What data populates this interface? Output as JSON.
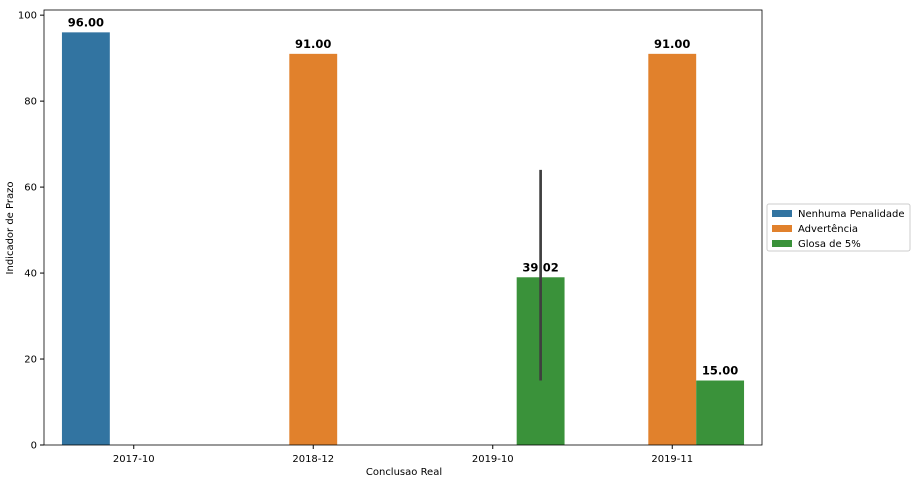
{
  "chart_data": {
    "type": "bar",
    "x_label": "Conclusao Real",
    "y_label": "Indicador de Prazo",
    "categories": [
      "2017-10",
      "2018-12",
      "2019-10",
      "2019-11"
    ],
    "series": [
      {
        "name": "Nenhuma Penalidade",
        "color": "#3274a1",
        "values": [
          96,
          null,
          null,
          null
        ],
        "value_labels": [
          "96.00",
          null,
          null,
          null
        ]
      },
      {
        "name": "Advertência",
        "color": "#e1812c",
        "values": [
          null,
          91,
          null,
          91
        ],
        "value_labels": [
          null,
          "91.00",
          null,
          "91.00"
        ]
      },
      {
        "name": "Glosa de 5%",
        "color": "#3a923a",
        "values": [
          null,
          null,
          39.02,
          15
        ],
        "value_labels": [
          null,
          null,
          "39.02",
          "15.00"
        ],
        "ci_low": [
          null,
          null,
          15,
          null
        ],
        "ci_high": [
          null,
          null,
          64,
          null
        ]
      }
    ],
    "ylim": [
      0,
      101.2
    ],
    "yticks": [
      0,
      20,
      40,
      60,
      80,
      100
    ],
    "legend": "right"
  }
}
